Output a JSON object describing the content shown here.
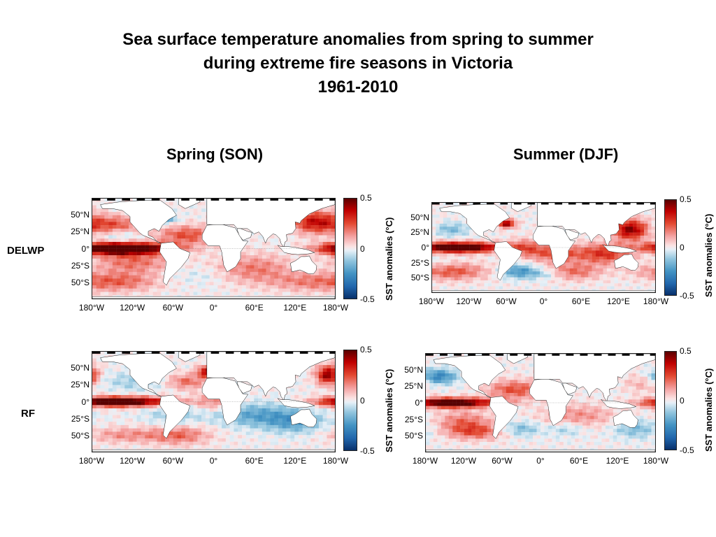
{
  "title": {
    "line1": "Sea surface temperature anomalies from spring to summer",
    "line2": "during extreme fire seasons in Victoria",
    "line3": "1961-2010"
  },
  "columns": {
    "spring": "Spring (SON)",
    "summer": "Summer (DJF)"
  },
  "rows": {
    "delwp": "DELWP",
    "rf": "RF"
  },
  "axes": {
    "lat_labels": [
      "50°N",
      "25°N",
      "0°",
      "25°S",
      "50°S"
    ],
    "lon_labels": [
      "180°W",
      "120°W",
      "60°W",
      "0°",
      "60°E",
      "120°E",
      "180°W"
    ]
  },
  "colorbar": {
    "label": "SST anomalies (°C)",
    "ticks": [
      "0.5",
      "0",
      "-0.5"
    ],
    "min": -0.5,
    "max": 0.5,
    "colors": {
      "neg_strong": "#08306b",
      "neg_mid": "#4393c3",
      "near_zero": "#f2f2f2",
      "pos_mid": "#f4a3a3",
      "pos_strong": "#5a0000"
    }
  },
  "panels": [
    {
      "id": "delwp-spring",
      "row": "DELWP",
      "season": "Spring (SON)"
    },
    {
      "id": "delwp-summer",
      "row": "DELWP",
      "season": "Summer (DJF)"
    },
    {
      "id": "rf-spring",
      "row": "RF",
      "season": "Spring (SON)"
    },
    {
      "id": "rf-summer",
      "row": "RF",
      "season": "Summer (DJF)"
    }
  ]
}
